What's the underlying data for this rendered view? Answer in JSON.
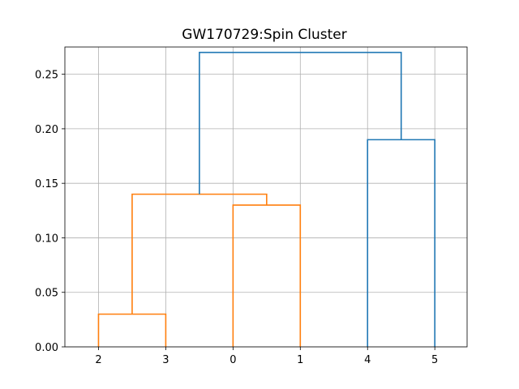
{
  "chart_data": {
    "type": "dendrogram",
    "title": "GW170729:Spin Cluster",
    "xlabel": "",
    "ylabel": "",
    "leaves": [
      "2",
      "3",
      "0",
      "1",
      "4",
      "5"
    ],
    "ylim": [
      0.0,
      0.275
    ],
    "yticks": [
      0.0,
      0.05,
      0.1,
      0.15,
      0.2,
      0.25
    ],
    "ytick_labels": [
      "0.00",
      "0.05",
      "0.10",
      "0.15",
      "0.20",
      "0.25"
    ],
    "grid": true,
    "colors": {
      "cluster_a": "#ff7f0e",
      "cluster_b": "#1f77b4",
      "above_threshold": "#1f77b4"
    },
    "merges": [
      {
        "left": "2",
        "right": "3",
        "height": 0.03,
        "color": "cluster_a"
      },
      {
        "left": "0",
        "right": "1",
        "height": 0.13,
        "color": "cluster_a"
      },
      {
        "left": "(2,3)",
        "right": "(0,1)",
        "height": 0.14,
        "color": "cluster_a"
      },
      {
        "left": "4",
        "right": "5",
        "height": 0.19,
        "color": "cluster_b"
      },
      {
        "left": "(2,3,0,1)",
        "right": "(4,5)",
        "height": 0.27,
        "color": "above_threshold"
      }
    ]
  }
}
